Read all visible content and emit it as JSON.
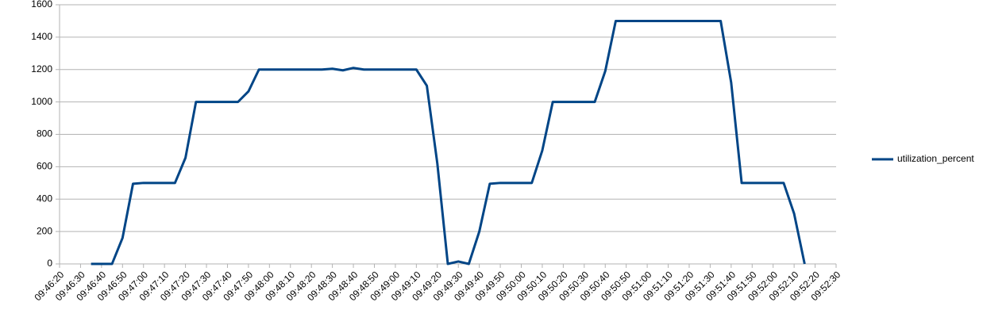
{
  "chart_data": {
    "type": "line",
    "x": [
      35195,
      35200,
      35205,
      35210,
      35215,
      35220,
      35225,
      35230,
      35235,
      35240,
      35245,
      35250,
      35255,
      35260,
      35265,
      35270,
      35275,
      35280,
      35285,
      35290,
      35295,
      35300,
      35305,
      35310,
      35315,
      35320,
      35325,
      35330,
      35335,
      35340,
      35345,
      35350,
      35355,
      35360,
      35365,
      35370,
      35375,
      35380,
      35385,
      35390,
      35395,
      35400,
      35405,
      35410,
      35415,
      35420,
      35425,
      35430,
      35435,
      35440,
      35445,
      35450,
      35455,
      35460,
      35465,
      35470,
      35475,
      35480,
      35485,
      35490,
      35495,
      35500,
      35505,
      35510,
      35515,
      35520,
      35525,
      35530,
      35535
    ],
    "series": [
      {
        "name": "utilization_percent",
        "color": "#004586",
        "values": [
          0,
          0,
          0,
          160,
          495,
          500,
          500,
          500,
          500,
          655,
          1000,
          1000,
          1000,
          1000,
          1000,
          1065,
          1200,
          1200,
          1200,
          1200,
          1200,
          1200,
          1200,
          1205,
          1195,
          1210,
          1200,
          1200,
          1200,
          1200,
          1200,
          1200,
          1100,
          620,
          0,
          15,
          0,
          200,
          495,
          500,
          500,
          500,
          500,
          700,
          1000,
          1000,
          1000,
          1000,
          1000,
          1190,
          1500,
          1500,
          1500,
          1500,
          1500,
          1500,
          1500,
          1500,
          1500,
          1500,
          1500,
          1120,
          500,
          500,
          500,
          500,
          500,
          310,
          0
        ]
      }
    ],
    "xlim": [
      35180,
      35550
    ],
    "xticks": [
      {
        "value": 35180,
        "label": "09:46:20"
      },
      {
        "value": 35190,
        "label": "09:46:30"
      },
      {
        "value": 35200,
        "label": "09:46:40"
      },
      {
        "value": 35210,
        "label": "09:46:50"
      },
      {
        "value": 35220,
        "label": "09:47:00"
      },
      {
        "value": 35230,
        "label": "09:47:10"
      },
      {
        "value": 35240,
        "label": "09:47:20"
      },
      {
        "value": 35250,
        "label": "09:47:30"
      },
      {
        "value": 35260,
        "label": "09:47:40"
      },
      {
        "value": 35270,
        "label": "09:47:50"
      },
      {
        "value": 35280,
        "label": "09:48:00"
      },
      {
        "value": 35290,
        "label": "09:48:10"
      },
      {
        "value": 35300,
        "label": "09:48:20"
      },
      {
        "value": 35310,
        "label": "09:48:30"
      },
      {
        "value": 35320,
        "label": "09:48:40"
      },
      {
        "value": 35330,
        "label": "09:48:50"
      },
      {
        "value": 35340,
        "label": "09:49:00"
      },
      {
        "value": 35350,
        "label": "09:49:10"
      },
      {
        "value": 35360,
        "label": "09:49:20"
      },
      {
        "value": 35370,
        "label": "09:49:30"
      },
      {
        "value": 35380,
        "label": "09:49:40"
      },
      {
        "value": 35390,
        "label": "09:49:50"
      },
      {
        "value": 35400,
        "label": "09:50:00"
      },
      {
        "value": 35410,
        "label": "09:50:10"
      },
      {
        "value": 35420,
        "label": "09:50:20"
      },
      {
        "value": 35430,
        "label": "09:50:30"
      },
      {
        "value": 35440,
        "label": "09:50:40"
      },
      {
        "value": 35450,
        "label": "09:50:50"
      },
      {
        "value": 35460,
        "label": "09:51:00"
      },
      {
        "value": 35470,
        "label": "09:51:10"
      },
      {
        "value": 35480,
        "label": "09:51:20"
      },
      {
        "value": 35490,
        "label": "09:51:30"
      },
      {
        "value": 35500,
        "label": "09:51:40"
      },
      {
        "value": 35510,
        "label": "09:51:50"
      },
      {
        "value": 35520,
        "label": "09:52:00"
      },
      {
        "value": 35530,
        "label": "09:52:10"
      },
      {
        "value": 35540,
        "label": "09:52:20"
      },
      {
        "value": 35550,
        "label": "09:52:30"
      }
    ],
    "ylim": [
      0,
      1600
    ],
    "yticks": [
      0,
      200,
      400,
      600,
      800,
      1000,
      1200,
      1400,
      1600
    ],
    "grid": true,
    "legend": "right"
  }
}
